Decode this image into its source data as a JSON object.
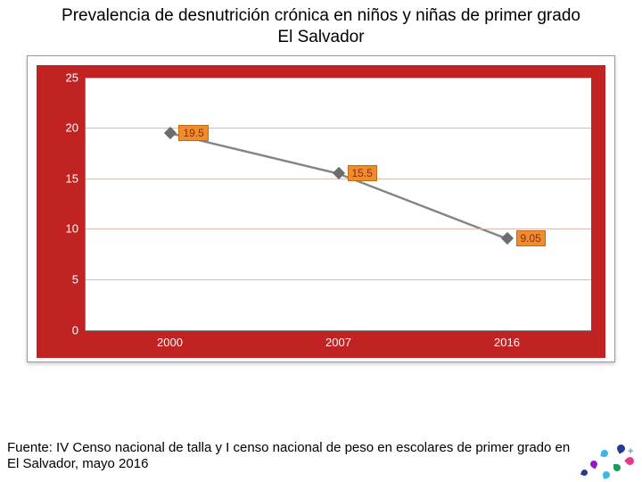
{
  "title_line1": "Prevalencia de desnutrición crónica en niños y niñas de primer grado",
  "title_line2": "El Salvador",
  "source_text": "Fuente: IV Censo nacional de talla y I censo nacional de peso en escolares de primer grado en El Salvador, mayo 2016",
  "chart": {
    "type": "line",
    "background_color": "#c02321",
    "plot_background": "#ffffff",
    "grid_color": "#d9b9b8",
    "axis_color": "#808080",
    "tick_color": "#ffffff",
    "xtick_color": "#ffffff",
    "marker_color": "#6d6d6d",
    "line_color": "#848484",
    "label_bg": "#ef8d2b",
    "label_border": "#c2691a",
    "label_text_color": "#8a2a1e",
    "title_fontsize": 19,
    "tick_fontsize": 13,
    "label_fontsize": 12,
    "line_width": 2.4,
    "marker_size": 10,
    "ylim": [
      0,
      25
    ],
    "ytick_step": 5,
    "yticks": [
      {
        "v": 0,
        "label": "0"
      },
      {
        "v": 5,
        "label": "5"
      },
      {
        "v": 10,
        "label": "10"
      },
      {
        "v": 15,
        "label": "15"
      },
      {
        "v": 20,
        "label": "20"
      },
      {
        "v": 25,
        "label": "25"
      }
    ],
    "categories": [
      "2000",
      "2007",
      "2016"
    ],
    "values": [
      19.5,
      15.5,
      9.05
    ],
    "value_labels": [
      "19.5",
      "15.5",
      "9.05"
    ]
  },
  "deco": {
    "colors": [
      "#2a3b8f",
      "#3cb7e5",
      "#e43c8b",
      "#8a1dc4",
      "#1d9b5a"
    ],
    "plus_color": "#4aa8e0"
  }
}
